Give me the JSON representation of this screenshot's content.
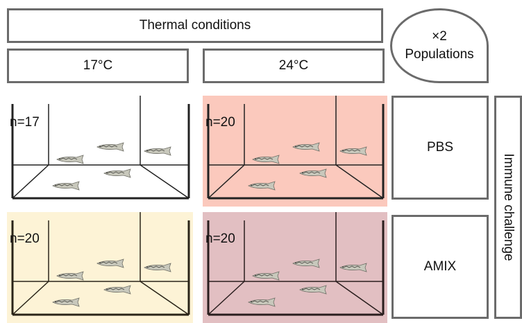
{
  "header": {
    "thermal_conditions": "Thermal conditions",
    "temp_low": "17°C",
    "temp_high": "24°C",
    "populations_multiplier": "×2",
    "populations_label": "Populations"
  },
  "side": {
    "pbs_label": "PBS",
    "amix_label": "AMIX",
    "immune_challenge": "Immune challenge"
  },
  "tanks": {
    "top_left": {
      "n_label": "n=17",
      "background": "#ffffff"
    },
    "top_right": {
      "n_label": "n=20",
      "background": "#fbc9bd"
    },
    "bottom_left": {
      "n_label": "n=20",
      "background": "#fdf3d6"
    },
    "bottom_right": {
      "n_label": "n=20",
      "background": "#e2bfc2"
    }
  }
}
